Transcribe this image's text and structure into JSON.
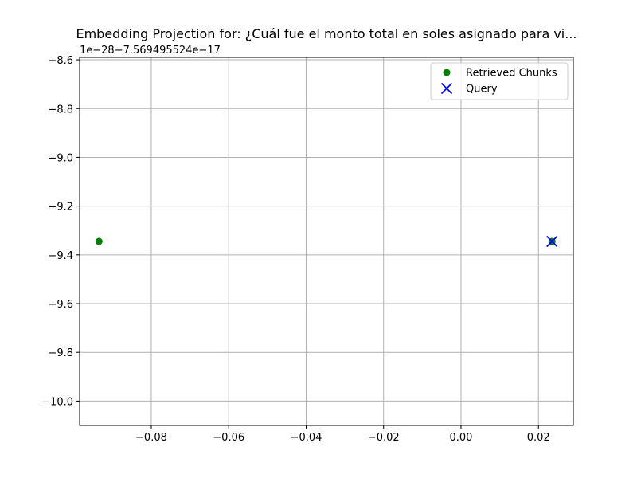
{
  "chart_data": {
    "type": "scatter",
    "title": "Embedding Projection for: ¿Cuál fue el monto total en soles asignado para vi...",
    "xlabel": "",
    "ylabel": "",
    "offset_text": "1e−28−7.569495524e−17",
    "xlim": [
      -0.0985,
      0.029
    ],
    "ylim": [
      -10.1,
      -8.59
    ],
    "xticks": [
      -0.08,
      -0.06,
      -0.04,
      -0.02,
      0.0,
      0.02
    ],
    "xtick_labels": [
      "−0.08",
      "−0.06",
      "−0.04",
      "−0.02",
      "0.00",
      "0.02"
    ],
    "yticks": [
      -8.6,
      -8.8,
      -9.0,
      -9.2,
      -9.4,
      -9.6,
      -9.8,
      -10.0
    ],
    "ytick_labels": [
      "−8.6",
      "−8.8",
      "−9.0",
      "−9.2",
      "−9.4",
      "−9.6",
      "−9.8",
      "−10.0"
    ],
    "grid": true,
    "legend_position": "top-right",
    "series": [
      {
        "name": "Retrieved Chunks",
        "marker": "circle",
        "color": "#008000",
        "points": [
          {
            "x": -0.0935,
            "y": -9.345
          },
          {
            "x": 0.0235,
            "y": -9.345
          }
        ]
      },
      {
        "name": "Query",
        "marker": "x",
        "color": "#0000ff",
        "points": [
          {
            "x": 0.0235,
            "y": -9.345
          }
        ]
      }
    ]
  }
}
